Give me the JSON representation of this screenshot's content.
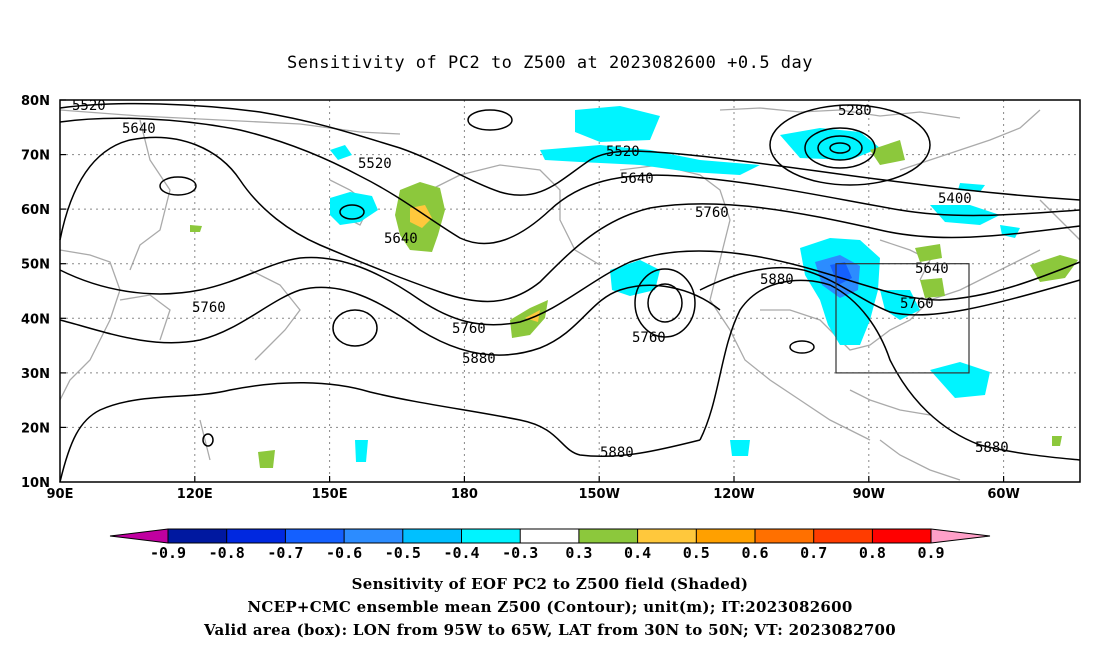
{
  "title": "Sensitivity of PC2 to Z500 at 2023082600 +0.5 day",
  "lat_labels": [
    "80N",
    "70N",
    "60N",
    "50N",
    "40N",
    "30N",
    "20N",
    "10N"
  ],
  "lon_labels": [
    "90E",
    "120E",
    "150E",
    "180",
    "150W",
    "120W",
    "90W",
    "60W"
  ],
  "contour_labels": [
    "5520",
    "5640",
    "5520",
    "5640",
    "5760",
    "5520",
    "5640",
    "5760",
    "5280",
    "5400",
    "5640",
    "5760",
    "5880",
    "5760",
    "5880",
    "5760",
    "5880",
    "5880"
  ],
  "colorbar": {
    "labels": [
      "-0.9",
      "-0.8",
      "-0.7",
      "-0.6",
      "-0.5",
      "-0.4",
      "-0.3",
      "0.3",
      "0.4",
      "0.5",
      "0.6",
      "0.7",
      "0.8",
      "0.9"
    ],
    "colors": [
      "#c000a0",
      "#0018a0",
      "#0028e0",
      "#1460ff",
      "#2c8cff",
      "#00c0ff",
      "#00f4ff",
      "#ffffff",
      "#8cc83c",
      "#ffc83c",
      "#ffa000",
      "#ff7000",
      "#ff3c00",
      "#ff0000",
      "#ffa0c8"
    ]
  },
  "captions": [
    "Sensitivity of EOF PC2 to Z500 field (Shaded)",
    "NCEP+CMC ensemble mean Z500 (Contour); unit(m); IT:2023082600",
    "Valid area (box): LON from 95W to 65W, LAT from 30N to 50N; VT: 2023082700"
  ]
}
